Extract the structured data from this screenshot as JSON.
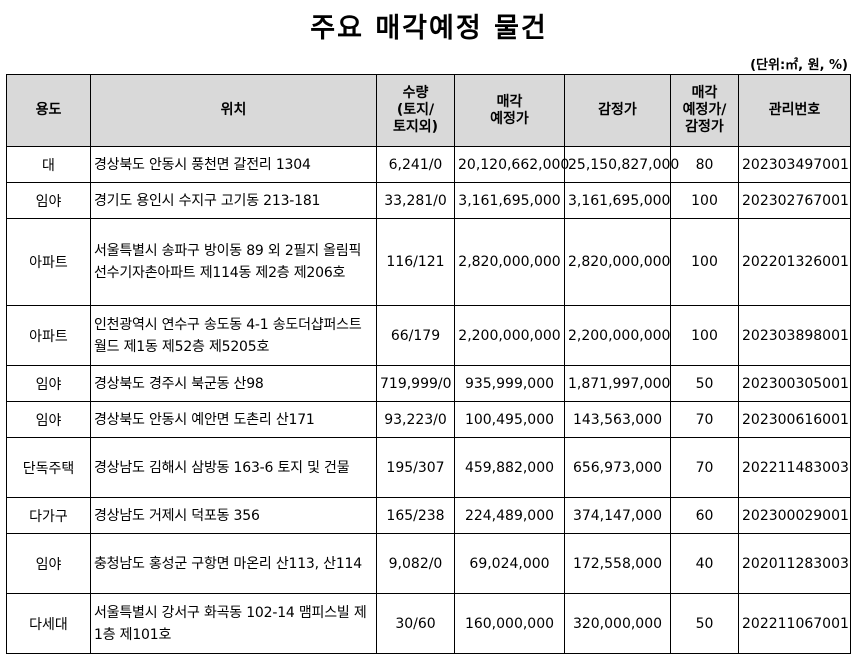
{
  "title": "주요 매각예정 물건",
  "unit": "(단위:㎡, 원, %)",
  "headers": {
    "use": "용도",
    "location": "위치",
    "qty": [
      "수량",
      "(토지/",
      "토지외)"
    ],
    "sale": [
      "매각",
      "예정가"
    ],
    "appraisal": "감정가",
    "ratio": [
      "매각",
      "예정가/",
      "감정가"
    ],
    "id": "관리번호"
  },
  "rows": [
    {
      "use": "대",
      "location": "경상북도 안동시 풍천면 갈전리 1304",
      "qty": "6,241/0",
      "sale": "20,120,662,000",
      "appraisal": "25,150,827,000",
      "ratio": "80",
      "id": "202303497001"
    },
    {
      "use": "임야",
      "location": "경기도 용인시 수지구 고기동 213-181",
      "qty": "33,281/0",
      "sale": "3,161,695,000",
      "appraisal": "3,161,695,000",
      "ratio": "100",
      "id": "202302767001"
    },
    {
      "use": "아파트",
      "location": "서울특별시 송파구 방이동 89 외 2필지 올림픽선수기자촌아파트 제114동 제2층 제206호",
      "qty": "116/121",
      "sale": "2,820,000,000",
      "appraisal": "2,820,000,000",
      "ratio": "100",
      "id": "202201326001"
    },
    {
      "use": "아파트",
      "location": "인천광역시 연수구 송도동 4-1 송도더샵퍼스트월드 제1동 제52층 제5205호",
      "qty": "66/179",
      "sale": "2,200,000,000",
      "appraisal": "2,200,000,000",
      "ratio": "100",
      "id": "202303898001"
    },
    {
      "use": "임야",
      "location": "경상북도 경주시 북군동 산98",
      "qty": "719,999/0",
      "sale": "935,999,000",
      "appraisal": "1,871,997,000",
      "ratio": "50",
      "id": "202300305001"
    },
    {
      "use": "임야",
      "location": "경상북도 안동시 예안면 도촌리 산171",
      "qty": "93,223/0",
      "sale": "100,495,000",
      "appraisal": "143,563,000",
      "ratio": "70",
      "id": "202300616001"
    },
    {
      "use": "단독주택",
      "location": "경상남도 김해시 삼방동 163-6 토지 및 건물",
      "qty": "195/307",
      "sale": "459,882,000",
      "appraisal": "656,973,000",
      "ratio": "70",
      "id": "202211483003"
    },
    {
      "use": "다가구",
      "location": "경상남도 거제시 덕포동 356",
      "qty": "165/238",
      "sale": "224,489,000",
      "appraisal": "374,147,000",
      "ratio": "60",
      "id": "202300029001"
    },
    {
      "use": "임야",
      "location": "충청남도 홍성군 구항면 마온리 산113, 산114",
      "qty": "9,082/0",
      "sale": "69,024,000",
      "appraisal": "172,558,000",
      "ratio": "40",
      "id": "202011283003"
    },
    {
      "use": "다세대",
      "location": "서울특별시 강서구 화곡동 102-14 맴피스빌 제1층 제101호",
      "qty": "30/60",
      "sale": "160,000,000",
      "appraisal": "320,000,000",
      "ratio": "50",
      "id": "202211067001"
    }
  ]
}
